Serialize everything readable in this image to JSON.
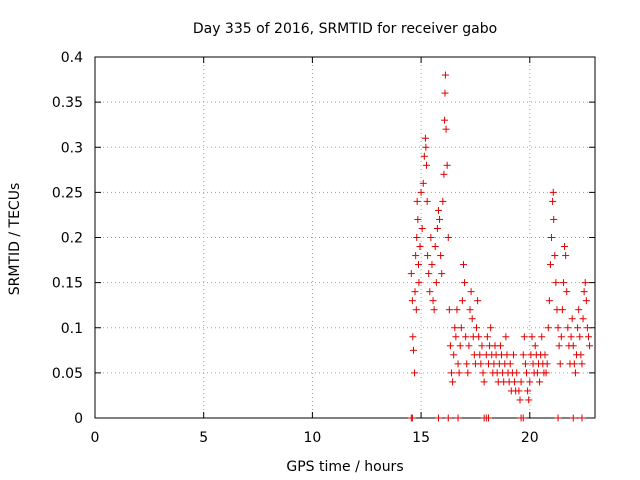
{
  "chart_data": {
    "type": "scatter",
    "title": "Day 335 of 2016, SRMTID for receiver gabo",
    "xlabel": "GPS time / hours",
    "ylabel": "SRMTID / TECUs",
    "xlim": [
      0,
      23
    ],
    "ylim": [
      0,
      0.4
    ],
    "xticks": [
      "0",
      "5",
      "10",
      "15",
      "20"
    ],
    "yticks": [
      "0",
      "0.05",
      "0.1",
      "0.15",
      "0.2",
      "0.25",
      "0.3",
      "0.35",
      "0.4"
    ],
    "grid": true,
    "marker": "+",
    "color": "#e00000",
    "series": [
      {
        "name": "SRMTID",
        "points": [
          [
            14.55,
            0.16
          ],
          [
            14.6,
            0.13
          ],
          [
            14.62,
            0.09
          ],
          [
            14.65,
            0.075
          ],
          [
            14.7,
            0.05
          ],
          [
            14.72,
            0.14
          ],
          [
            14.75,
            0.18
          ],
          [
            14.78,
            0.12
          ],
          [
            14.8,
            0.2
          ],
          [
            14.82,
            0.24
          ],
          [
            14.85,
            0.22
          ],
          [
            14.88,
            0.17
          ],
          [
            14.9,
            0.15
          ],
          [
            14.95,
            0.19
          ],
          [
            15.0,
            0.25
          ],
          [
            15.05,
            0.21
          ],
          [
            15.1,
            0.26
          ],
          [
            15.15,
            0.29
          ],
          [
            15.2,
            0.31
          ],
          [
            15.22,
            0.3
          ],
          [
            15.25,
            0.28
          ],
          [
            15.28,
            0.24
          ],
          [
            15.3,
            0.18
          ],
          [
            15.35,
            0.16
          ],
          [
            15.4,
            0.14
          ],
          [
            15.45,
            0.2
          ],
          [
            15.5,
            0.17
          ],
          [
            15.55,
            0.13
          ],
          [
            15.6,
            0.12
          ],
          [
            15.65,
            0.19
          ],
          [
            15.7,
            0.15
          ],
          [
            15.75,
            0.21
          ],
          [
            15.8,
            0.23
          ],
          [
            15.85,
            0.22
          ],
          [
            15.9,
            0.18
          ],
          [
            15.95,
            0.16
          ],
          [
            16.0,
            0.24
          ],
          [
            16.05,
            0.27
          ],
          [
            16.08,
            0.33
          ],
          [
            16.1,
            0.36
          ],
          [
            16.12,
            0.38
          ],
          [
            16.15,
            0.32
          ],
          [
            16.2,
            0.28
          ],
          [
            16.25,
            0.2
          ],
          [
            16.3,
            0.12
          ],
          [
            16.35,
            0.08
          ],
          [
            16.4,
            0.05
          ],
          [
            16.45,
            0.04
          ],
          [
            16.5,
            0.07
          ],
          [
            16.55,
            0.1
          ],
          [
            16.6,
            0.09
          ],
          [
            16.65,
            0.12
          ],
          [
            16.7,
            0.06
          ],
          [
            16.75,
            0.05
          ],
          [
            16.8,
            0.08
          ],
          [
            16.85,
            0.1
          ],
          [
            16.9,
            0.13
          ],
          [
            16.95,
            0.17
          ],
          [
            17.0,
            0.15
          ],
          [
            17.05,
            0.09
          ],
          [
            17.1,
            0.06
          ],
          [
            17.15,
            0.05
          ],
          [
            17.2,
            0.08
          ],
          [
            17.25,
            0.12
          ],
          [
            17.3,
            0.14
          ],
          [
            17.35,
            0.11
          ],
          [
            17.4,
            0.09
          ],
          [
            17.45,
            0.07
          ],
          [
            17.5,
            0.06
          ],
          [
            17.55,
            0.1
          ],
          [
            17.6,
            0.13
          ],
          [
            17.65,
            0.09
          ],
          [
            17.7,
            0.07
          ],
          [
            17.75,
            0.06
          ],
          [
            17.8,
            0.08
          ],
          [
            17.85,
            0.05
          ],
          [
            17.9,
            0.04
          ],
          [
            18.0,
            0.07
          ],
          [
            18.05,
            0.09
          ],
          [
            18.1,
            0.06
          ],
          [
            18.15,
            0.08
          ],
          [
            18.2,
            0.1
          ],
          [
            18.25,
            0.07
          ],
          [
            18.3,
            0.05
          ],
          [
            18.35,
            0.06
          ],
          [
            18.4,
            0.08
          ],
          [
            18.45,
            0.07
          ],
          [
            18.5,
            0.05
          ],
          [
            18.55,
            0.04
          ],
          [
            18.6,
            0.06
          ],
          [
            18.65,
            0.08
          ],
          [
            18.7,
            0.07
          ],
          [
            18.75,
            0.05
          ],
          [
            18.8,
            0.04
          ],
          [
            18.85,
            0.06
          ],
          [
            18.9,
            0.09
          ],
          [
            18.95,
            0.07
          ],
          [
            19.0,
            0.05
          ],
          [
            19.05,
            0.04
          ],
          [
            19.1,
            0.06
          ],
          [
            19.15,
            0.03
          ],
          [
            19.2,
            0.05
          ],
          [
            19.25,
            0.07
          ],
          [
            19.3,
            0.04
          ],
          [
            19.35,
            0.03
          ],
          [
            19.4,
            0.05
          ],
          [
            19.5,
            0.03
          ],
          [
            19.55,
            0.02
          ],
          [
            19.6,
            0.04
          ],
          [
            19.7,
            0.07
          ],
          [
            19.75,
            0.09
          ],
          [
            19.8,
            0.06
          ],
          [
            19.85,
            0.05
          ],
          [
            19.9,
            0.03
          ],
          [
            19.95,
            0.02
          ],
          [
            20.0,
            0.04
          ],
          [
            20.05,
            0.07
          ],
          [
            20.1,
            0.09
          ],
          [
            20.15,
            0.06
          ],
          [
            20.2,
            0.05
          ],
          [
            20.25,
            0.08
          ],
          [
            20.3,
            0.07
          ],
          [
            20.35,
            0.05
          ],
          [
            20.4,
            0.06
          ],
          [
            20.45,
            0.04
          ],
          [
            20.5,
            0.07
          ],
          [
            20.55,
            0.09
          ],
          [
            20.6,
            0.06
          ],
          [
            20.65,
            0.05
          ],
          [
            20.7,
            0.07
          ],
          [
            20.75,
            0.05
          ],
          [
            20.8,
            0.06
          ],
          [
            20.85,
            0.1
          ],
          [
            20.9,
            0.13
          ],
          [
            20.95,
            0.17
          ],
          [
            21.0,
            0.2
          ],
          [
            21.05,
            0.24
          ],
          [
            21.08,
            0.25
          ],
          [
            21.1,
            0.22
          ],
          [
            21.15,
            0.18
          ],
          [
            21.2,
            0.15
          ],
          [
            21.25,
            0.12
          ],
          [
            21.3,
            0.1
          ],
          [
            21.35,
            0.08
          ],
          [
            21.4,
            0.06
          ],
          [
            21.45,
            0.09
          ],
          [
            21.5,
            0.12
          ],
          [
            21.55,
            0.15
          ],
          [
            21.6,
            0.19
          ],
          [
            21.65,
            0.18
          ],
          [
            21.7,
            0.14
          ],
          [
            21.75,
            0.1
          ],
          [
            21.8,
            0.08
          ],
          [
            21.85,
            0.06
          ],
          [
            21.9,
            0.09
          ],
          [
            21.95,
            0.11
          ],
          [
            22.0,
            0.08
          ],
          [
            22.05,
            0.06
          ],
          [
            22.1,
            0.05
          ],
          [
            22.15,
            0.07
          ],
          [
            22.2,
            0.1
          ],
          [
            22.25,
            0.12
          ],
          [
            22.3,
            0.09
          ],
          [
            22.35,
            0.07
          ],
          [
            22.4,
            0.06
          ],
          [
            22.45,
            0.11
          ],
          [
            22.5,
            0.14
          ],
          [
            22.55,
            0.15
          ],
          [
            22.6,
            0.13
          ],
          [
            22.65,
            0.1
          ],
          [
            22.7,
            0.09
          ],
          [
            22.75,
            0.08
          ],
          [
            14.55,
            0.0
          ],
          [
            14.6,
            0.0
          ],
          [
            15.8,
            0.0
          ],
          [
            16.25,
            0.0
          ],
          [
            16.7,
            0.0
          ],
          [
            17.9,
            0.0
          ],
          [
            18.0,
            0.0
          ],
          [
            18.1,
            0.0
          ],
          [
            19.6,
            0.0
          ],
          [
            19.7,
            0.0
          ],
          [
            21.3,
            0.0
          ],
          [
            22.0,
            0.0
          ],
          [
            22.4,
            0.0
          ]
        ]
      }
    ]
  }
}
